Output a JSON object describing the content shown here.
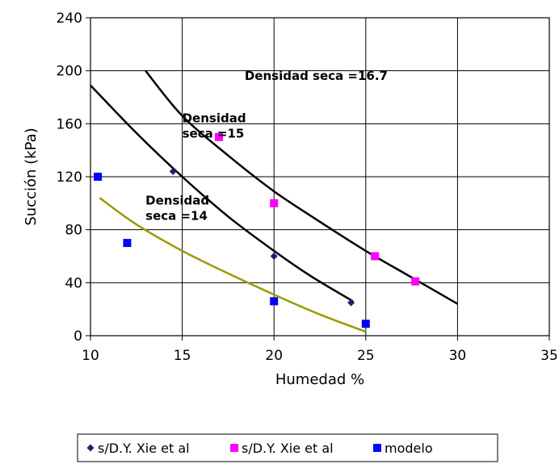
{
  "chart_data": {
    "type": "scatter",
    "title": "",
    "xlabel": "Humedad %",
    "ylabel": "Succión (kPa)",
    "xlim": [
      10,
      35
    ],
    "ylim": [
      0,
      240
    ],
    "xticks": [
      "10",
      "15",
      "20",
      "25",
      "30",
      "35"
    ],
    "yticks": [
      "0",
      "40",
      "80",
      "120",
      "160",
      "200",
      "240"
    ],
    "grid": true,
    "legend_position": "bottom",
    "series": [
      {
        "name": "s/D.Y. Xie et al",
        "kind": "points",
        "marker": "diamond",
        "color": "#1f1f6e",
        "points": [
          [
            14.5,
            124
          ],
          [
            20,
            60
          ],
          [
            24.2,
            25
          ]
        ]
      },
      {
        "name": "s/D.Y. Xie et al",
        "kind": "points",
        "marker": "square",
        "color": "#ff00ff",
        "points": [
          [
            17,
            150
          ],
          [
            20,
            100
          ],
          [
            25.5,
            60
          ],
          [
            27.7,
            41
          ]
        ]
      },
      {
        "name": "modelo",
        "kind": "points",
        "marker": "square",
        "color": "#0000ff",
        "points": [
          [
            10.4,
            120
          ],
          [
            12,
            70
          ],
          [
            20,
            26
          ],
          [
            25,
            9
          ]
        ]
      }
    ],
    "curves": [
      {
        "color": "#000000",
        "points": [
          [
            13,
            200
          ],
          [
            15,
            166
          ],
          [
            17.5,
            136
          ],
          [
            20,
            109
          ],
          [
            22.5,
            86
          ],
          [
            25,
            64
          ],
          [
            27.5,
            44
          ],
          [
            30,
            24
          ]
        ]
      },
      {
        "color": "#000000",
        "points": [
          [
            10,
            189
          ],
          [
            12.5,
            153
          ],
          [
            15,
            120
          ],
          [
            17.5,
            90
          ],
          [
            20,
            64
          ],
          [
            22,
            45
          ],
          [
            24.3,
            26
          ]
        ]
      },
      {
        "color": "#9a9a00",
        "points": [
          [
            10.5,
            104
          ],
          [
            12.5,
            84
          ],
          [
            15,
            64
          ],
          [
            17.5,
            47
          ],
          [
            20,
            31
          ],
          [
            22.5,
            16
          ],
          [
            25,
            3
          ]
        ]
      }
    ],
    "annotations": [
      {
        "lines": [
          "Densidad seca =16.7"
        ],
        "x": 18.4,
        "y": 193
      },
      {
        "lines": [
          "Densidad",
          "seca =15"
        ],
        "x": 15,
        "y": 161
      },
      {
        "lines": [
          "Densidad",
          "seca =14"
        ],
        "x": 13,
        "y": 99
      }
    ]
  }
}
